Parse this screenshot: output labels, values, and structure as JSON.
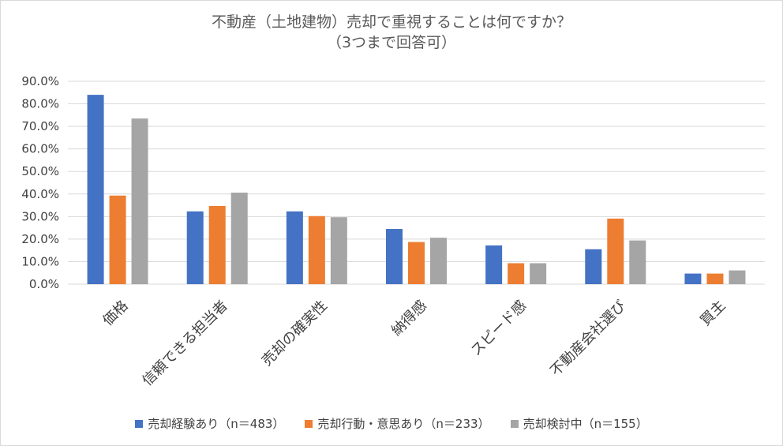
{
  "chart_data": {
    "type": "bar",
    "title": "不動産（土地建物）売却で重視することは何ですか？",
    "subtitle": "（3つまで回答可）",
    "categories": [
      "価格",
      "信頼できる担当者",
      "売却の確実性",
      "納得感",
      "スピード感",
      "不動産会社選び",
      "買主"
    ],
    "series": [
      {
        "name": "売却経験あり（n＝483）",
        "color": "#4472c4",
        "values": [
          84.0,
          32.3,
          32.3,
          24.5,
          17.2,
          15.5,
          4.7
        ]
      },
      {
        "name": "売却行動・意思あり（n＝233）",
        "color": "#ed7d31",
        "values": [
          39.3,
          34.7,
          30.2,
          18.7,
          9.3,
          29.1,
          4.7
        ]
      },
      {
        "name": "売却検討中（n＝155）",
        "color": "#a5a5a5",
        "values": [
          73.5,
          40.6,
          29.7,
          20.6,
          9.3,
          19.4,
          6.1
        ]
      }
    ],
    "ylim": [
      0,
      90
    ],
    "yticks": [
      "0.0%",
      "10.0%",
      "20.0%",
      "30.0%",
      "40.0%",
      "50.0%",
      "60.0%",
      "70.0%",
      "80.0%",
      "90.0%"
    ],
    "grid": true,
    "legend": "bottom",
    "xlabel": "",
    "ylabel": ""
  }
}
